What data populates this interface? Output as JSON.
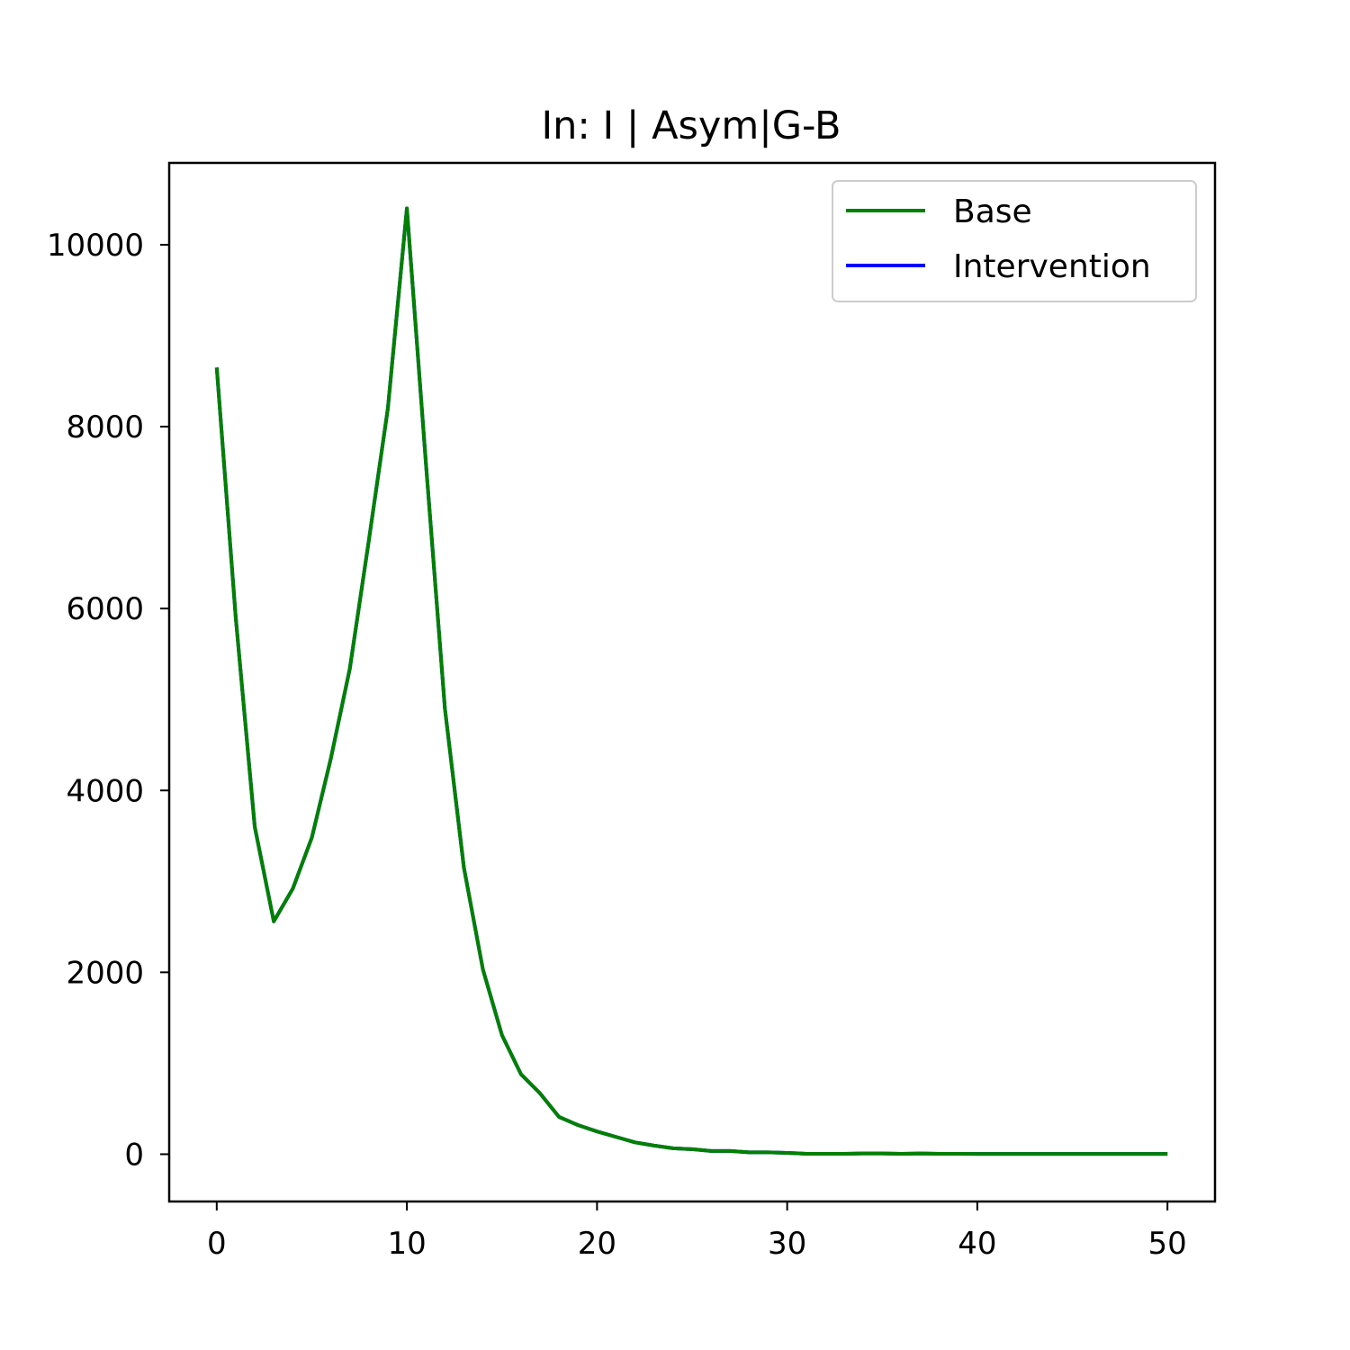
{
  "chart_data": {
    "type": "line",
    "title": "In: I | Asym|G-B",
    "xlabel": "",
    "ylabel": "",
    "xlim": [
      -2.5,
      52.5
    ],
    "ylim": [
      -520,
      10900
    ],
    "xticks": [
      0,
      10,
      20,
      30,
      40,
      50
    ],
    "yticks": [
      0,
      2000,
      4000,
      6000,
      8000,
      10000
    ],
    "grid": false,
    "legend_position": "top-right",
    "x": [
      0,
      1,
      2,
      3,
      4,
      5,
      6,
      7,
      8,
      9,
      10,
      11,
      12,
      13,
      14,
      15,
      16,
      17,
      18,
      19,
      20,
      21,
      22,
      23,
      24,
      25,
      26,
      27,
      28,
      29,
      30,
      31,
      32,
      33,
      34,
      35,
      36,
      37,
      38,
      39,
      40,
      41,
      42,
      43,
      44,
      45,
      46,
      47,
      48,
      49,
      50
    ],
    "series": [
      {
        "name": "Base",
        "color": "#008000",
        "values": [
          8650,
          5900,
          3600,
          2560,
          2920,
          3480,
          4350,
          5340,
          6750,
          8200,
          10400,
          7600,
          4900,
          3150,
          2030,
          1310,
          880,
          670,
          410,
          320,
          250,
          190,
          130,
          95,
          65,
          55,
          35,
          35,
          20,
          20,
          15,
          5,
          5,
          5,
          8,
          8,
          5,
          8,
          5,
          5,
          3,
          3,
          3,
          3,
          3,
          3,
          3,
          3,
          3,
          3,
          3
        ]
      },
      {
        "name": "Intervention",
        "color": "#0000ff",
        "values": [
          8650,
          5900,
          3600,
          2560,
          2920,
          3480,
          4350,
          5340,
          6750,
          8200,
          10400,
          7600,
          4900,
          3150,
          2030,
          1310,
          880,
          670,
          410,
          320,
          250,
          190,
          130,
          95,
          65,
          55,
          35,
          35,
          20,
          20,
          15,
          5,
          5,
          5,
          8,
          8,
          5,
          8,
          5,
          5,
          3,
          3,
          3,
          3,
          3,
          3,
          3,
          3,
          3,
          3,
          3
        ]
      }
    ]
  }
}
